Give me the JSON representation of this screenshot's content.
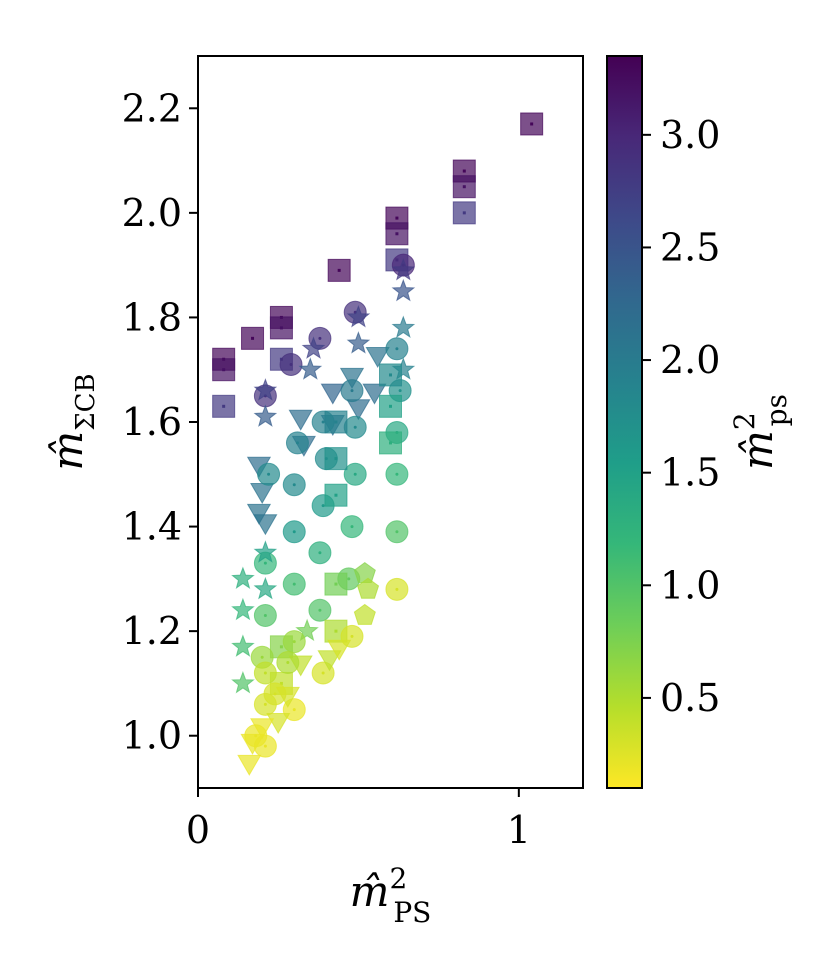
{
  "chart_data": {
    "type": "scatter",
    "title": "",
    "xlabel": {
      "base": "m̂",
      "sup": "2",
      "sub": "PS"
    },
    "ylabel": {
      "base": "m̂",
      "sub": "ΣCB"
    },
    "xlim": [
      0,
      1.2
    ],
    "ylim": [
      0.9,
      2.3
    ],
    "xticks": [
      0,
      1
    ],
    "xtick_labels": [
      "0",
      "1"
    ],
    "yticks": [
      1.0,
      1.2,
      1.4,
      1.6,
      1.8,
      2.0,
      2.2
    ],
    "ytick_labels": [
      "1.0",
      "1.2",
      "1.4",
      "1.6",
      "1.8",
      "2.0",
      "2.2"
    ],
    "grid": false,
    "legend": "none",
    "colorbar": {
      "colormap": "viridis",
      "label": {
        "base": "m̂",
        "sup": "2",
        "sub": "ps"
      },
      "range": [
        0.1,
        3.35
      ],
      "ticks": [
        0.5,
        1.0,
        1.5,
        2.0,
        2.5,
        3.0
      ],
      "tick_labels": [
        "0.5",
        "1.0",
        "1.5",
        "2.0",
        "2.5",
        "3.0"
      ],
      "stops": [
        "#fde725",
        "#b5de2b",
        "#6ece58",
        "#35b779",
        "#1f9e89",
        "#26828e",
        "#31688e",
        "#3e4989",
        "#482878",
        "#440154"
      ]
    },
    "marker_alpha": 0.7,
    "points": [
      {
        "x": 1.04,
        "y": 2.17,
        "c": 3.3,
        "m": "square"
      },
      {
        "x": 0.83,
        "y": 2.08,
        "c": 3.3,
        "m": "square"
      },
      {
        "x": 0.83,
        "y": 2.05,
        "c": 3.2,
        "m": "square"
      },
      {
        "x": 0.83,
        "y": 2.0,
        "c": 2.8,
        "m": "square"
      },
      {
        "x": 0.62,
        "y": 1.99,
        "c": 3.3,
        "m": "square"
      },
      {
        "x": 0.62,
        "y": 1.96,
        "c": 3.2,
        "m": "square"
      },
      {
        "x": 0.62,
        "y": 1.91,
        "c": 2.8,
        "m": "square"
      },
      {
        "x": 0.44,
        "y": 1.89,
        "c": 3.3,
        "m": "square"
      },
      {
        "x": 0.26,
        "y": 1.8,
        "c": 3.3,
        "m": "square"
      },
      {
        "x": 0.26,
        "y": 1.78,
        "c": 3.2,
        "m": "square"
      },
      {
        "x": 0.17,
        "y": 1.76,
        "c": 3.3,
        "m": "square"
      },
      {
        "x": 0.26,
        "y": 1.72,
        "c": 2.8,
        "m": "square"
      },
      {
        "x": 0.08,
        "y": 1.72,
        "c": 3.3,
        "m": "square"
      },
      {
        "x": 0.08,
        "y": 1.7,
        "c": 3.2,
        "m": "square"
      },
      {
        "x": 0.08,
        "y": 1.63,
        "c": 2.8,
        "m": "square"
      },
      {
        "x": 0.64,
        "y": 1.9,
        "c": 3.0,
        "m": "circle"
      },
      {
        "x": 0.49,
        "y": 1.81,
        "c": 2.9,
        "m": "circle"
      },
      {
        "x": 0.38,
        "y": 1.76,
        "c": 2.9,
        "m": "circle"
      },
      {
        "x": 0.29,
        "y": 1.71,
        "c": 2.9,
        "m": "circle"
      },
      {
        "x": 0.21,
        "y": 1.65,
        "c": 2.9,
        "m": "circle"
      },
      {
        "x": 0.64,
        "y": 1.89,
        "c": 2.8,
        "m": "star"
      },
      {
        "x": 0.64,
        "y": 1.85,
        "c": 2.5,
        "m": "star"
      },
      {
        "x": 0.5,
        "y": 1.8,
        "c": 2.7,
        "m": "star"
      },
      {
        "x": 0.5,
        "y": 1.75,
        "c": 2.4,
        "m": "star"
      },
      {
        "x": 0.36,
        "y": 1.74,
        "c": 2.7,
        "m": "star"
      },
      {
        "x": 0.35,
        "y": 1.7,
        "c": 2.4,
        "m": "star"
      },
      {
        "x": 0.21,
        "y": 1.66,
        "c": 2.7,
        "m": "star"
      },
      {
        "x": 0.21,
        "y": 1.61,
        "c": 2.4,
        "m": "star"
      },
      {
        "x": 0.64,
        "y": 1.78,
        "c": 2.0,
        "m": "star"
      },
      {
        "x": 0.64,
        "y": 1.7,
        "c": 1.9,
        "m": "star"
      },
      {
        "x": 0.56,
        "y": 1.73,
        "c": 2.1,
        "m": "triangle"
      },
      {
        "x": 0.55,
        "y": 1.66,
        "c": 2.2,
        "m": "triangle"
      },
      {
        "x": 0.48,
        "y": 1.69,
        "c": 2.1,
        "m": "triangle"
      },
      {
        "x": 0.5,
        "y": 1.63,
        "c": 2.2,
        "m": "triangle"
      },
      {
        "x": 0.42,
        "y": 1.66,
        "c": 2.3,
        "m": "triangle"
      },
      {
        "x": 0.42,
        "y": 1.6,
        "c": 2.2,
        "m": "triangle"
      },
      {
        "x": 0.32,
        "y": 1.61,
        "c": 2.2,
        "m": "triangle"
      },
      {
        "x": 0.33,
        "y": 1.56,
        "c": 2.2,
        "m": "triangle"
      },
      {
        "x": 0.19,
        "y": 1.52,
        "c": 2.2,
        "m": "triangle"
      },
      {
        "x": 0.2,
        "y": 1.47,
        "c": 2.1,
        "m": "triangle"
      },
      {
        "x": 0.19,
        "y": 1.43,
        "c": 2.1,
        "m": "triangle"
      },
      {
        "x": 0.21,
        "y": 1.41,
        "c": 2.1,
        "m": "triangle"
      },
      {
        "x": 0.62,
        "y": 1.74,
        "c": 1.9,
        "m": "circle"
      },
      {
        "x": 0.63,
        "y": 1.66,
        "c": 1.7,
        "m": "circle"
      },
      {
        "x": 0.48,
        "y": 1.66,
        "c": 2.0,
        "m": "circle"
      },
      {
        "x": 0.49,
        "y": 1.59,
        "c": 1.8,
        "m": "circle"
      },
      {
        "x": 0.4,
        "y": 1.53,
        "c": 1.8,
        "m": "circle"
      },
      {
        "x": 0.39,
        "y": 1.6,
        "c": 1.9,
        "m": "circle"
      },
      {
        "x": 0.31,
        "y": 1.56,
        "c": 1.9,
        "m": "circle"
      },
      {
        "x": 0.3,
        "y": 1.48,
        "c": 1.8,
        "m": "circle"
      },
      {
        "x": 0.22,
        "y": 1.5,
        "c": 1.8,
        "m": "circle"
      },
      {
        "x": 0.3,
        "y": 1.39,
        "c": 1.6,
        "m": "circle"
      },
      {
        "x": 0.39,
        "y": 1.44,
        "c": 1.6,
        "m": "circle"
      },
      {
        "x": 0.49,
        "y": 1.5,
        "c": 1.4,
        "m": "circle"
      },
      {
        "x": 0.62,
        "y": 1.58,
        "c": 1.4,
        "m": "circle"
      },
      {
        "x": 0.62,
        "y": 1.5,
        "c": 1.2,
        "m": "circle"
      },
      {
        "x": 0.62,
        "y": 1.39,
        "c": 1.0,
        "m": "circle"
      },
      {
        "x": 0.62,
        "y": 1.28,
        "c": 0.3,
        "m": "circle"
      },
      {
        "x": 0.6,
        "y": 1.69,
        "c": 1.8,
        "m": "square"
      },
      {
        "x": 0.6,
        "y": 1.63,
        "c": 1.5,
        "m": "square"
      },
      {
        "x": 0.6,
        "y": 1.56,
        "c": 1.3,
        "m": "square"
      },
      {
        "x": 0.43,
        "y": 1.6,
        "c": 1.9,
        "m": "square"
      },
      {
        "x": 0.43,
        "y": 1.53,
        "c": 1.7,
        "m": "square"
      },
      {
        "x": 0.43,
        "y": 1.46,
        "c": 1.5,
        "m": "square"
      },
      {
        "x": 0.38,
        "y": 1.35,
        "c": 1.3,
        "m": "circle"
      },
      {
        "x": 0.48,
        "y": 1.4,
        "c": 1.2,
        "m": "circle"
      },
      {
        "x": 0.3,
        "y": 1.29,
        "c": 1.1,
        "m": "circle"
      },
      {
        "x": 0.21,
        "y": 1.33,
        "c": 1.2,
        "m": "circle"
      },
      {
        "x": 0.21,
        "y": 1.23,
        "c": 1.0,
        "m": "circle"
      },
      {
        "x": 0.38,
        "y": 1.24,
        "c": 1.0,
        "m": "circle"
      },
      {
        "x": 0.47,
        "y": 1.3,
        "c": 0.9,
        "m": "circle"
      },
      {
        "x": 0.43,
        "y": 1.29,
        "c": 0.8,
        "m": "square"
      },
      {
        "x": 0.26,
        "y": 1.17,
        "c": 0.7,
        "m": "square"
      },
      {
        "x": 0.43,
        "y": 1.2,
        "c": 0.5,
        "m": "square"
      },
      {
        "x": 0.52,
        "y": 1.31,
        "c": 0.7,
        "m": "pentagon"
      },
      {
        "x": 0.53,
        "y": 1.28,
        "c": 0.5,
        "m": "pentagon"
      },
      {
        "x": 0.52,
        "y": 1.23,
        "c": 0.4,
        "m": "pentagon"
      },
      {
        "x": 0.21,
        "y": 1.28,
        "c": 1.4,
        "m": "star"
      },
      {
        "x": 0.21,
        "y": 1.35,
        "c": 1.5,
        "m": "star"
      },
      {
        "x": 0.14,
        "y": 1.3,
        "c": 1.3,
        "m": "star"
      },
      {
        "x": 0.14,
        "y": 1.24,
        "c": 1.2,
        "m": "star"
      },
      {
        "x": 0.14,
        "y": 1.17,
        "c": 1.1,
        "m": "star"
      },
      {
        "x": 0.14,
        "y": 1.1,
        "c": 1.0,
        "m": "star"
      },
      {
        "x": 0.34,
        "y": 1.2,
        "c": 0.8,
        "m": "star"
      },
      {
        "x": 0.3,
        "y": 1.18,
        "c": 0.6,
        "m": "circle"
      },
      {
        "x": 0.2,
        "y": 1.15,
        "c": 0.6,
        "m": "circle"
      },
      {
        "x": 0.39,
        "y": 1.12,
        "c": 0.3,
        "m": "circle"
      },
      {
        "x": 0.48,
        "y": 1.19,
        "c": 0.3,
        "m": "circle"
      },
      {
        "x": 0.3,
        "y": 1.05,
        "c": 0.2,
        "m": "circle"
      },
      {
        "x": 0.21,
        "y": 1.06,
        "c": 0.3,
        "m": "circle"
      },
      {
        "x": 0.21,
        "y": 0.98,
        "c": 0.2,
        "m": "circle"
      },
      {
        "x": 0.26,
        "y": 1.1,
        "c": 0.4,
        "m": "square"
      },
      {
        "x": 0.21,
        "y": 1.12,
        "c": 0.4,
        "m": "circle"
      },
      {
        "x": 0.32,
        "y": 1.14,
        "c": 0.4,
        "m": "triangle"
      },
      {
        "x": 0.28,
        "y": 1.08,
        "c": 0.3,
        "m": "triangle"
      },
      {
        "x": 0.25,
        "y": 1.03,
        "c": 0.3,
        "m": "triangle"
      },
      {
        "x": 0.2,
        "y": 1.02,
        "c": 0.2,
        "m": "triangle"
      },
      {
        "x": 0.17,
        "y": 0.99,
        "c": 0.2,
        "m": "triangle"
      },
      {
        "x": 0.16,
        "y": 0.95,
        "c": 0.2,
        "m": "triangle"
      },
      {
        "x": 0.41,
        "y": 1.15,
        "c": 0.4,
        "m": "triangle"
      },
      {
        "x": 0.44,
        "y": 1.17,
        "c": 0.3,
        "m": "triangle"
      },
      {
        "x": 0.18,
        "y": 1.0,
        "c": 0.2,
        "m": "circle"
      },
      {
        "x": 0.24,
        "y": 1.08,
        "c": 0.3,
        "m": "circle"
      },
      {
        "x": 0.28,
        "y": 1.14,
        "c": 0.5,
        "m": "circle"
      }
    ]
  }
}
